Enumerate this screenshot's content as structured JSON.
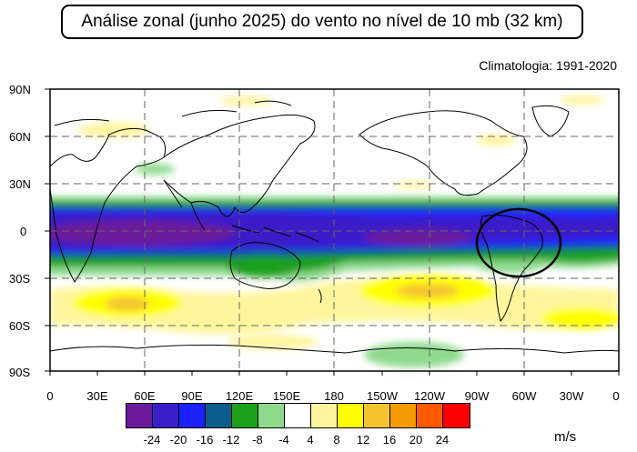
{
  "title": "Análise zonal (junho 2025) do vento no nível de 10 mb (32 km)",
  "climatology": "Climatologia: 1991-2020",
  "lat_labels": [
    "90N",
    "60N",
    "30N",
    "0",
    "30S",
    "60S",
    "90S"
  ],
  "lon_labels": [
    "0",
    "30E",
    "60E",
    "90E",
    "120E",
    "150E",
    "180",
    "150W",
    "120W",
    "90W",
    "60W",
    "30W",
    "0"
  ],
  "colorbar": {
    "labels": [
      "-24",
      "-20",
      "-16",
      "-12",
      "-8",
      "-4",
      "4",
      "8",
      "12",
      "16",
      "20",
      "24"
    ],
    "colors": [
      "#6a1b9a",
      "#3a1fc8",
      "#1a22ff",
      "#0a5d8a",
      "#1aa01a",
      "#8ed98e",
      "#ffffff",
      "#fff59d",
      "#ffff00",
      "#f4c430",
      "#f59a00",
      "#ff5a00",
      "#ff0000"
    ],
    "units": "m/s"
  },
  "annotation": "circle-highlight-south-america"
}
